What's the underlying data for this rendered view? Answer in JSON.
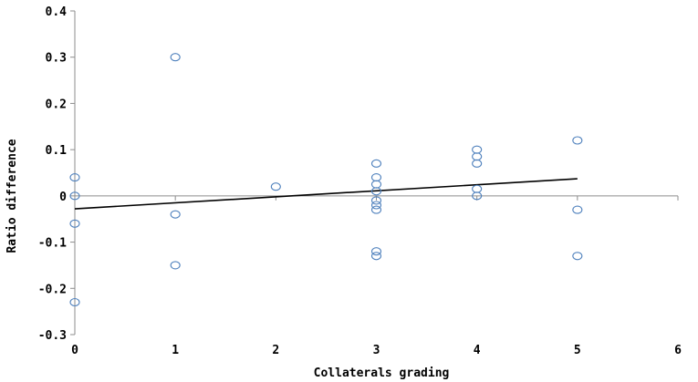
{
  "chart_data": {
    "type": "scatter",
    "title": "",
    "xlabel": "Collaterals grading",
    "ylabel": "Ratio difference",
    "xlim": [
      0,
      6
    ],
    "ylim": [
      -0.3,
      0.4
    ],
    "x_ticks": [
      0,
      1,
      2,
      3,
      4,
      5,
      6
    ],
    "y_ticks": [
      -0.3,
      -0.2,
      -0.1,
      0,
      0.1,
      0.2,
      0.3,
      0.4
    ],
    "x_tick_labels": [
      "0",
      "1",
      "2",
      "3",
      "4",
      "5",
      "6"
    ],
    "y_tick_labels": [
      "-0.3",
      "-0.2",
      "-0.1",
      "0",
      "0.1",
      "0.2",
      "0.3",
      "0.4"
    ],
    "grid": false,
    "legend": "none",
    "marker_color": "#4f81bd",
    "trendline_color": "#000000",
    "points": [
      {
        "x": 0,
        "y": 0.04
      },
      {
        "x": 0,
        "y": 0.0
      },
      {
        "x": 0,
        "y": -0.06
      },
      {
        "x": 0,
        "y": -0.23
      },
      {
        "x": 1,
        "y": 0.3
      },
      {
        "x": 1,
        "y": -0.04
      },
      {
        "x": 1,
        "y": -0.15
      },
      {
        "x": 2,
        "y": 0.02
      },
      {
        "x": 3,
        "y": 0.07
      },
      {
        "x": 3,
        "y": 0.04
      },
      {
        "x": 3,
        "y": 0.025
      },
      {
        "x": 3,
        "y": 0.01
      },
      {
        "x": 3,
        "y": -0.01
      },
      {
        "x": 3,
        "y": -0.02
      },
      {
        "x": 3,
        "y": -0.03
      },
      {
        "x": 3,
        "y": -0.12
      },
      {
        "x": 3,
        "y": -0.13
      },
      {
        "x": 4,
        "y": 0.1
      },
      {
        "x": 4,
        "y": 0.085
      },
      {
        "x": 4,
        "y": 0.07
      },
      {
        "x": 4,
        "y": 0.015
      },
      {
        "x": 4,
        "y": 0.0
      },
      {
        "x": 5,
        "y": 0.12
      },
      {
        "x": 5,
        "y": -0.03
      },
      {
        "x": 5,
        "y": -0.13
      }
    ],
    "trendline": {
      "x": [
        0,
        5
      ],
      "y": [
        -0.028,
        0.037
      ]
    }
  }
}
